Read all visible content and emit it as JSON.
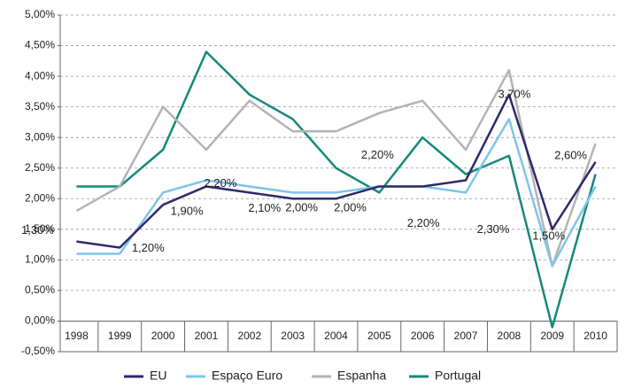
{
  "chart_data": {
    "type": "line",
    "categories": [
      "1998",
      "1999",
      "2000",
      "2001",
      "2002",
      "2003",
      "2004",
      "2005",
      "2006",
      "2007",
      "2008",
      "2009",
      "2010"
    ],
    "series": [
      {
        "name": "EU",
        "color": "#2e2a6b",
        "values": [
          1.3,
          1.2,
          1.9,
          2.2,
          2.1,
          2.0,
          2.0,
          2.2,
          2.2,
          2.3,
          3.7,
          1.5,
          2.6
        ],
        "value_labels": [
          "1,30%",
          "1,20%",
          "1,90%",
          "2,20%",
          "2,10%",
          "2,00%",
          "2,00%",
          "2,20%",
          "2,20%",
          "2,30%",
          "3,70%",
          "1,50%",
          "2,60%"
        ]
      },
      {
        "name": "Espaço Euro",
        "color": "#7fc4e8",
        "values": [
          1.1,
          1.1,
          2.1,
          2.3,
          2.2,
          2.1,
          2.1,
          2.2,
          2.2,
          2.1,
          3.3,
          0.9,
          2.2
        ]
      },
      {
        "name": "Espanha",
        "color": "#b3b3b3",
        "values": [
          1.8,
          2.2,
          3.5,
          2.8,
          3.6,
          3.1,
          3.1,
          3.4,
          3.6,
          2.8,
          4.1,
          0.9,
          2.9
        ]
      },
      {
        "name": "Portugal",
        "color": "#16897b",
        "values": [
          2.2,
          2.2,
          2.8,
          4.4,
          3.7,
          3.3,
          2.5,
          2.1,
          3.0,
          2.4,
          2.7,
          -0.1,
          2.4
        ]
      }
    ],
    "ylim": [
      -0.5,
      5.0
    ],
    "yticks": [
      {
        "value": -0.5,
        "label": "-0,50%"
      },
      {
        "value": 0,
        "label": "0,00%"
      },
      {
        "value": 0.5,
        "label": "0,50%"
      },
      {
        "value": 1.0,
        "label": "1,00%"
      },
      {
        "value": 1.5,
        "label": "1,50%"
      },
      {
        "value": 2.0,
        "label": "2,00%"
      },
      {
        "value": 2.5,
        "label": "2,50%"
      },
      {
        "value": 3.0,
        "label": "3,00%"
      },
      {
        "value": 3.5,
        "label": "3,50%"
      },
      {
        "value": 4.0,
        "label": "4,00%"
      },
      {
        "value": 4.5,
        "label": "4,50%"
      },
      {
        "value": 5.0,
        "label": "5,00%"
      }
    ],
    "grid": true,
    "legend": "bottom"
  }
}
